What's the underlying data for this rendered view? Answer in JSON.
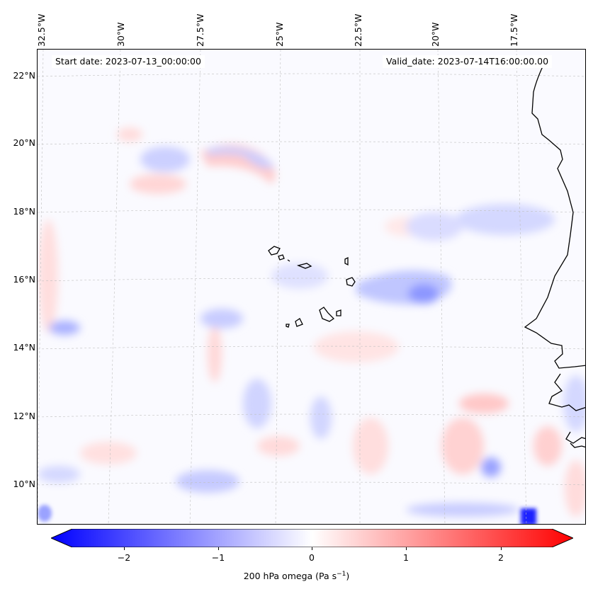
{
  "map": {
    "start_date_text": "Start date: 2023-07-13_00:00:00",
    "valid_date_text": "Valid_date: 2023-07-14T16:00:00.00",
    "lon_labels": [
      "32.5°W",
      "30°W",
      "27.5°W",
      "25°W",
      "22.5°W",
      "20°W",
      "17.5°W"
    ],
    "lat_labels": [
      "22°N",
      "20°N",
      "18°N",
      "16°N",
      "14°N",
      "12°N",
      "10°N"
    ],
    "gridlines": "dashed, light gray",
    "coastline_color": "#000000"
  },
  "colorbar": {
    "label": "200 hPa omega (Pa s",
    "label_superscript": "−1",
    "label_close": ")",
    "ticks": [
      "−2",
      "−1",
      "0",
      "1",
      "2"
    ],
    "range": [
      -2.75,
      2.75
    ],
    "colormap": "bwr",
    "min_color": "#0000ff",
    "mid_color": "#ffffff",
    "max_color": "#ff0000",
    "extend": "both"
  }
}
